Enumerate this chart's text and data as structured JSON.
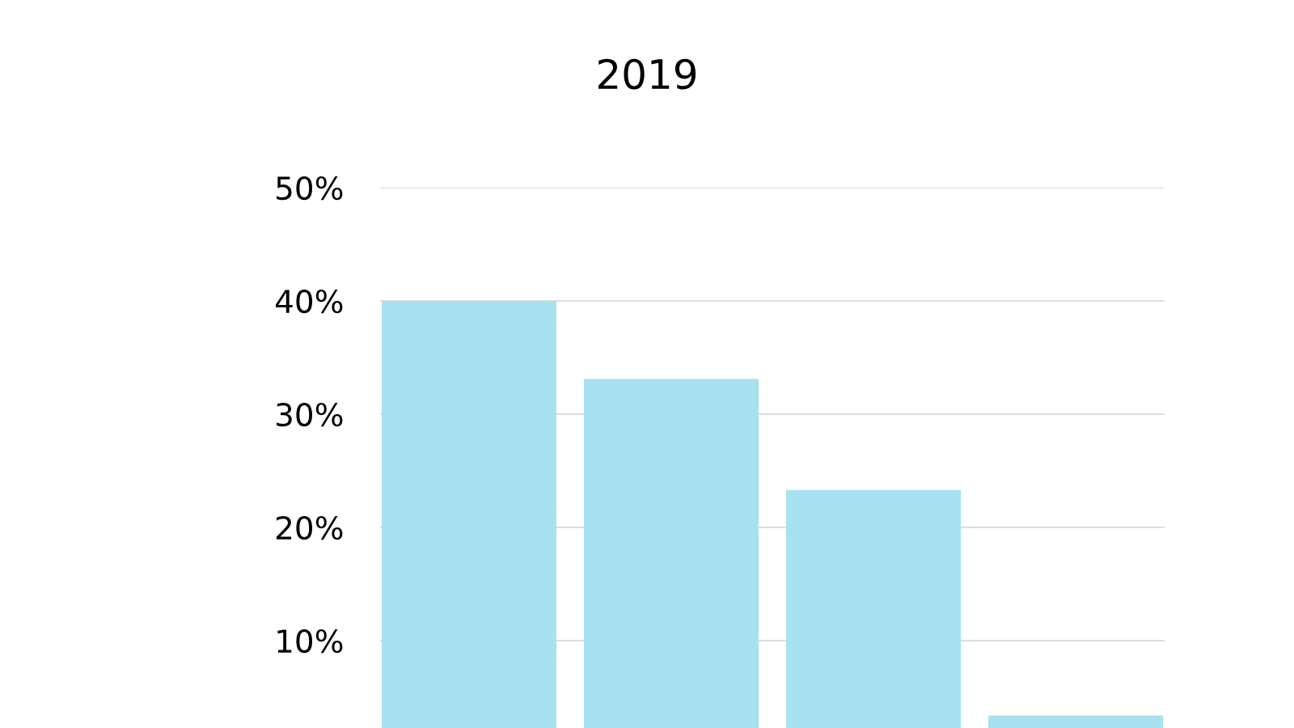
{
  "chart_data": {
    "type": "bar",
    "title": "2019",
    "categories": [
      null,
      null,
      null,
      null
    ],
    "values": [
      40,
      33.1,
      23.3,
      3.4
    ],
    "color": "#a8e1f0",
    "ylim": [
      0,
      50
    ],
    "yticks": [
      {
        "value": 10,
        "label": "10%"
      },
      {
        "value": 20,
        "label": "20%"
      },
      {
        "value": 30,
        "label": "30%"
      },
      {
        "value": 40,
        "label": "40%"
      },
      {
        "value": 50,
        "label": "50%"
      }
    ],
    "grid": "y",
    "legend": false
  }
}
